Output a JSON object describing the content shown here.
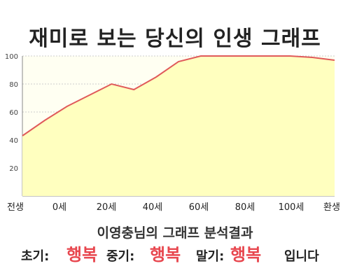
{
  "title": "재미로 보는 당신의 인생 그래프",
  "chart_data": {
    "type": "area",
    "xticks": [
      "전생",
      "0세",
      "20세",
      "40세",
      "60세",
      "80세",
      "100세",
      "환생"
    ],
    "yticks": [
      "100",
      "80",
      "60",
      "40",
      "20"
    ],
    "ylim": [
      0,
      100
    ],
    "x": [
      0,
      5,
      10,
      15,
      20,
      25,
      30,
      35,
      40,
      45,
      50,
      55,
      60,
      65,
      70
    ],
    "values": [
      43,
      54,
      64,
      72,
      80,
      76,
      85,
      96,
      100,
      100,
      100,
      100,
      100,
      99,
      97
    ],
    "colors": {
      "line": "#e05a5a",
      "fill": "#ffffbf",
      "grid": "#cccccc"
    }
  },
  "summary": {
    "heading": "이영충님의 그래프 분석결과",
    "early_label": "초기:",
    "early_value": "행복",
    "middle_label": "중기:",
    "middle_value": "행복",
    "late_label": "말기:",
    "late_value": "행복",
    "ending": "입니다"
  }
}
